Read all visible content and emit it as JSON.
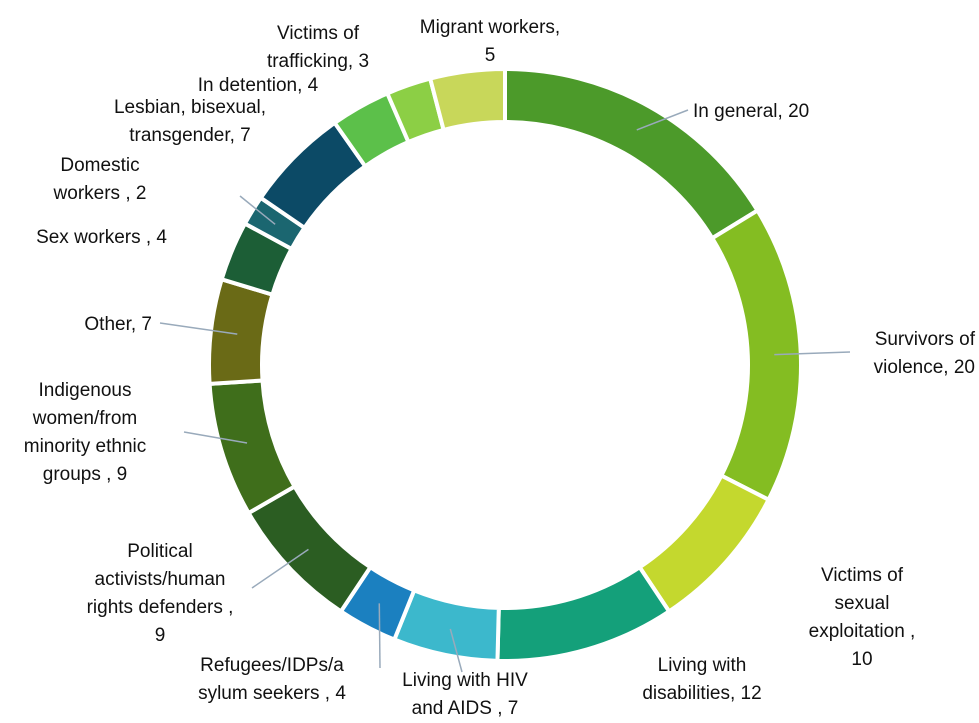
{
  "chart_data": {
    "type": "donut",
    "values": [
      20,
      20,
      10,
      12,
      7,
      4,
      9,
      9,
      7,
      4,
      2,
      7,
      4,
      3,
      5
    ],
    "value_labels": [
      "In general, 20",
      "Survivors of\nviolence, 20",
      "Victims of sexual\nexploitation , 10",
      "Living with\ndisabilities, 12",
      "Living with HIV\nand AIDS , 7",
      "Refugees/IDPs/a\nsylum seekers , 4",
      "Political\nactivists/human\nrights defenders ,\n9",
      "Indigenous\nwomen/from\nminority ethnic\ngroups , 9",
      "Other, 7",
      "Sex workers , 4",
      "Domestic\nworkers , 2",
      "Lesbian, bisexual,\ntransgender, 7",
      "In detention, 4",
      "Victims of\ntrafficking, 3",
      "Migrant workers,\n5"
    ],
    "colors": [
      "#4c9a2a",
      "#84bd22",
      "#c4d82e",
      "#14a07a",
      "#3cb8cc",
      "#1b80c0",
      "#2b5d22",
      "#3f6e1b",
      "#6a6a16",
      "#1c5e36",
      "#1b6670",
      "#0c4a66",
      "#5cc04a",
      "#8ccf45",
      "#c8d75a"
    ]
  }
}
